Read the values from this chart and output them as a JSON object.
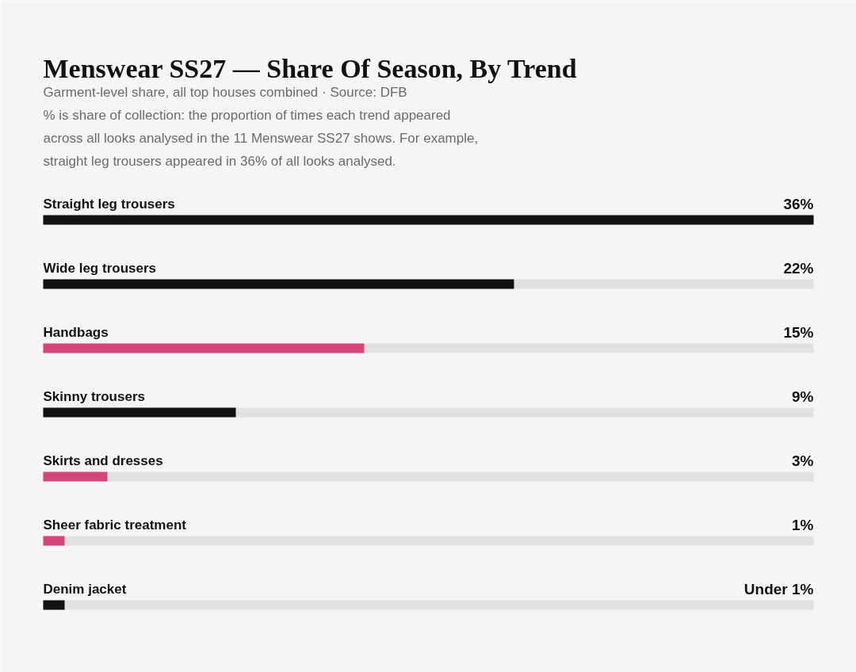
{
  "chart_data": {
    "type": "bar",
    "orientation": "horizontal",
    "title": "Menswear SS27 — Share Of Season, By Trend",
    "subtitle": "Garment-level share, all top houses combined · Source: DFB",
    "annotations": [
      "% is share of collection: the proportion of times each trend appeared across all looks analysed in the 11 Menswear SS27 shows. For example, straight leg trousers appeared in 36% of all looks analysed."
    ],
    "categories": [
      "Straight leg trousers",
      "Wide leg trousers",
      "Handbags",
      "Skinny trousers",
      "Skirts and dresses",
      "Sheer fabric treatment",
      "Denim jacket"
    ],
    "values": [
      36,
      22,
      15,
      9,
      3,
      1,
      1
    ],
    "colors": [
      "#111111",
      "#111111",
      "#d6457a",
      "#111111",
      "#d6457a",
      "#d6457a",
      "#111111"
    ],
    "value_labels": [
      "36%",
      "22%",
      "15%",
      "9%",
      "3%",
      "1%",
      "Under 1%"
    ],
    "xlim": [
      0,
      36
    ]
  }
}
